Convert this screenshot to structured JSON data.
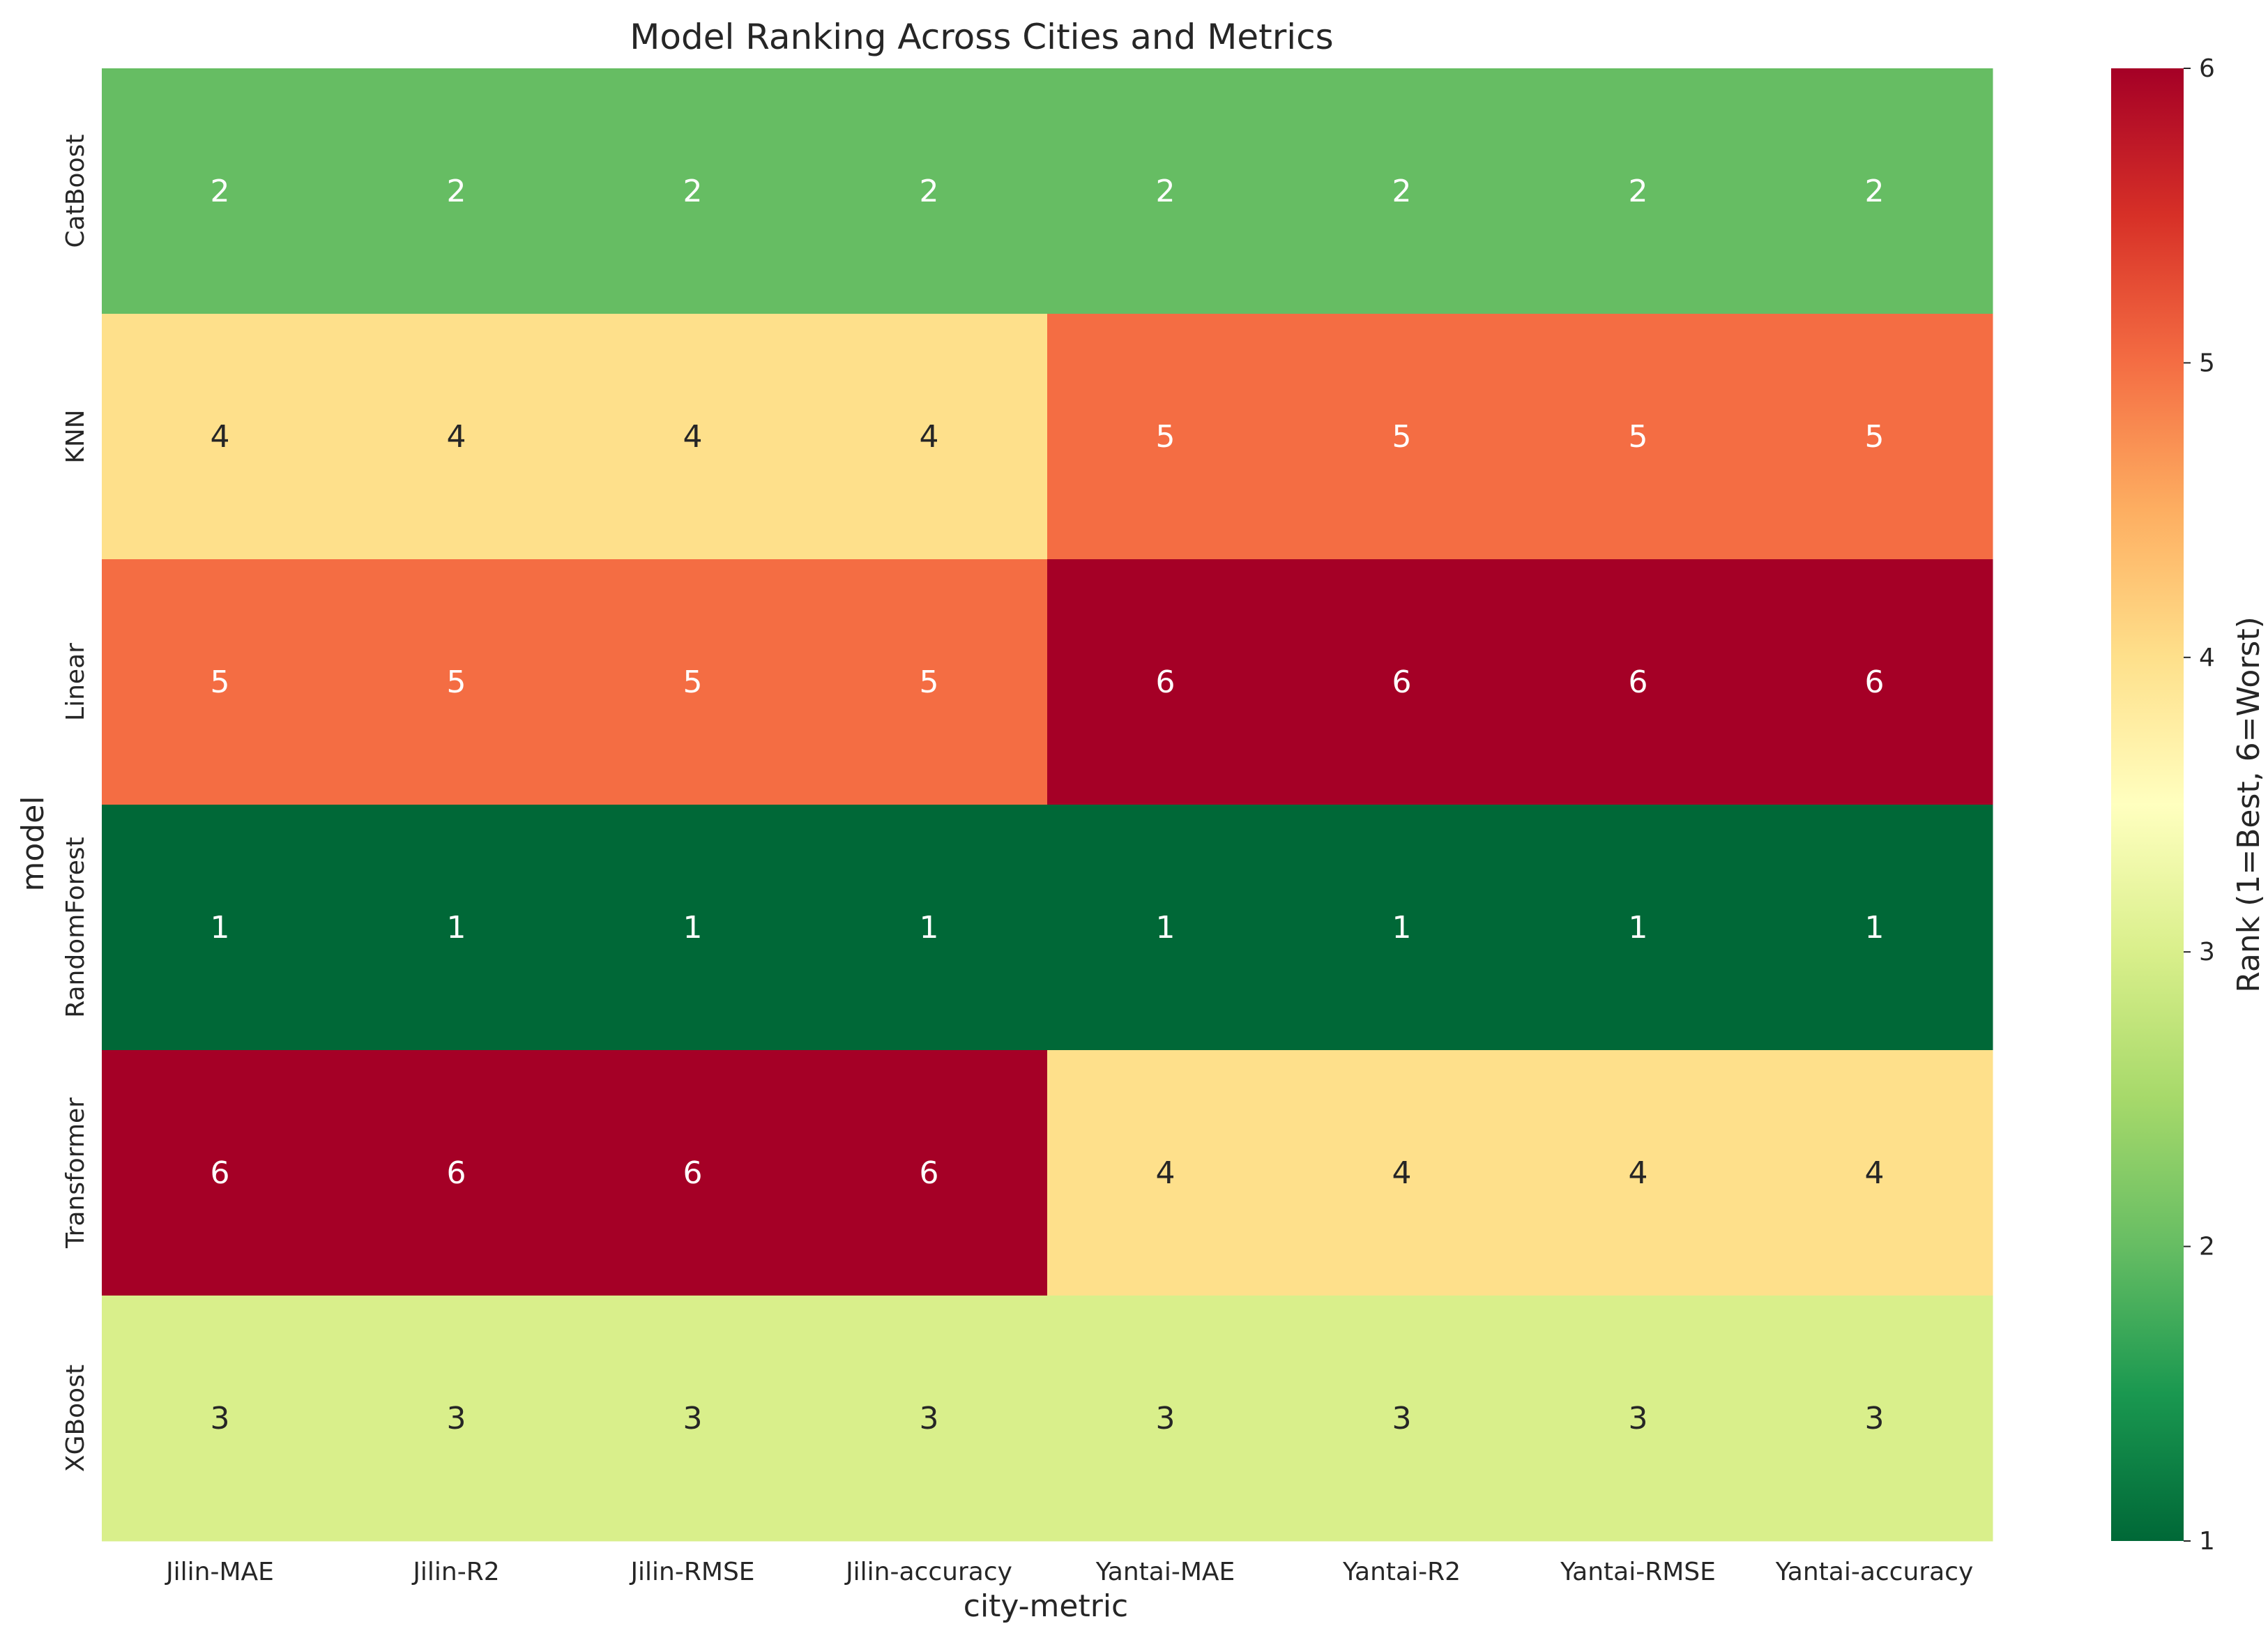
{
  "chart_data": {
    "type": "heatmap",
    "title": "Model Ranking Across Cities and Metrics",
    "xlabel": "city-metric",
    "ylabel": "model",
    "x_categories": [
      "Jilin-MAE",
      "Jilin-R2",
      "Jilin-RMSE",
      "Jilin-accuracy",
      "Yantai-MAE",
      "Yantai-R2",
      "Yantai-RMSE",
      "Yantai-accuracy"
    ],
    "y_categories": [
      "CatBoost",
      "KNN",
      "Linear",
      "RandomForest",
      "Transformer",
      "XGBoost"
    ],
    "values": [
      [
        2,
        2,
        2,
        2,
        2,
        2,
        2,
        2
      ],
      [
        4,
        4,
        4,
        4,
        5,
        5,
        5,
        5
      ],
      [
        5,
        5,
        5,
        5,
        6,
        6,
        6,
        6
      ],
      [
        1,
        1,
        1,
        1,
        1,
        1,
        1,
        1
      ],
      [
        6,
        6,
        6,
        6,
        4,
        4,
        4,
        4
      ],
      [
        3,
        3,
        3,
        3,
        3,
        3,
        3,
        3
      ]
    ],
    "colormap": "RdYlGn_r",
    "vmin": 1,
    "vmax": 6,
    "colorbar": {
      "label": "Rank (1=Best, 6=Worst)",
      "ticks": [
        1,
        2,
        3,
        4,
        5,
        6
      ]
    },
    "annotations": true,
    "grid": false
  }
}
